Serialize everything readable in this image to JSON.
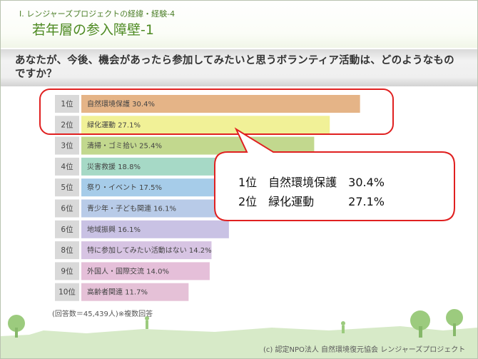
{
  "header": {
    "section": "Ⅰ. レンジャーズプロジェクトの経緯・経験-4",
    "title": "若年層の参入障壁-1"
  },
  "question": "あなたが、今後、機会があったら参加してみたいと思うボランティア活動は、どのようなものですか？",
  "chart_data": {
    "type": "bar",
    "orientation": "horizontal",
    "unit": "%",
    "xlim": [
      0,
      40
    ],
    "bars": [
      {
        "rank": "1位",
        "label": "自然環境保護 30.4%",
        "value": 30.4,
        "color": "#e5b487"
      },
      {
        "rank": "2位",
        "label": "緑化運動 27.1%",
        "value": 27.1,
        "color": "#f1f197"
      },
      {
        "rank": "3位",
        "label": "清掃・ゴミ拾い 25.4%",
        "value": 25.4,
        "color": "#c2d88e"
      },
      {
        "rank": "4位",
        "label": "災害救援 18.8%",
        "value": 18.8,
        "color": "#a6d9c6"
      },
      {
        "rank": "5位",
        "label": "祭り・イベント 17.5%",
        "value": 17.5,
        "color": "#a6cce9"
      },
      {
        "rank": "6位",
        "label": "青少年・子ども関連 16.1%",
        "value": 16.1,
        "color": "#b8cbe8"
      },
      {
        "rank": "6位",
        "label": "地域振興 16.1%",
        "value": 16.1,
        "color": "#c9c2e4"
      },
      {
        "rank": "8位",
        "label": "特に参加してみたい活動はない 14.2%",
        "value": 14.2,
        "color": "#d7c4e3"
      },
      {
        "rank": "9位",
        "label": "外国人・国際交流 14.0%",
        "value": 14.0,
        "color": "#e5bfd9"
      },
      {
        "rank": "10位",
        "label": "高齢者関連 11.7%",
        "value": 11.7,
        "color": "#e5c1d7"
      }
    ],
    "rank_box_color": "#d9d9d9",
    "note": "(回答数＝45,439人)※複数回答"
  },
  "callout": {
    "line1": "1位　自然環境保護　30.4%",
    "line2": "2位　緑化運動　　　27.1%"
  },
  "highlight_color": "#e02020",
  "footer": {
    "copyright": "(c) 認定NPO法人 自然環境復元協会 レンジャーズプロジェクト"
  }
}
